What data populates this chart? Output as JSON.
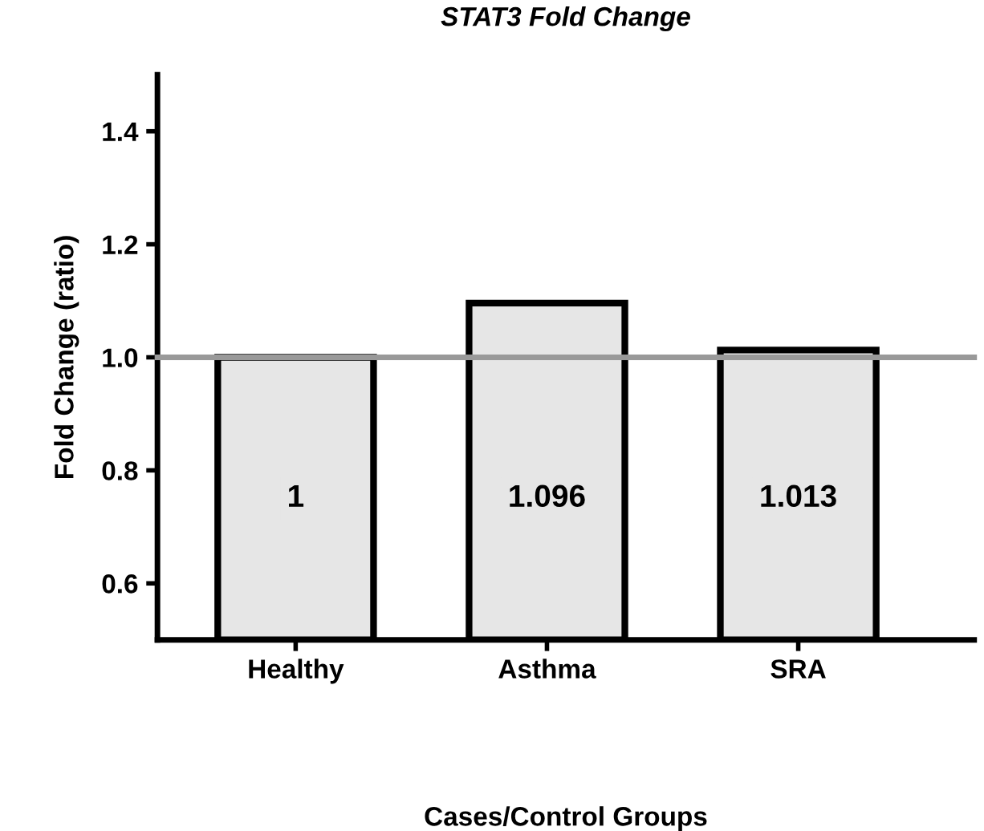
{
  "chart_data": {
    "type": "bar",
    "title": "STAT3 Fold Change",
    "xlabel": "Cases/Control Groups",
    "ylabel": "Fold Change (ratio)",
    "categories": [
      "Healthy",
      "Asthma",
      "SRA"
    ],
    "values": [
      1,
      1.096,
      1.013
    ],
    "color": "#e6e6e6",
    "data_labels": true,
    "ylim": [
      0.5,
      1.5
    ],
    "yticks": [
      0.6,
      0.8,
      {
        "value": 1,
        "label": "1.0"
      },
      1.2,
      1.4
    ],
    "ref_lines": [
      {
        "axis": "y",
        "value": 1.0,
        "label": null,
        "color": "#999999",
        "line_style": "solid"
      }
    ],
    "grid": false,
    "legend": false
  }
}
